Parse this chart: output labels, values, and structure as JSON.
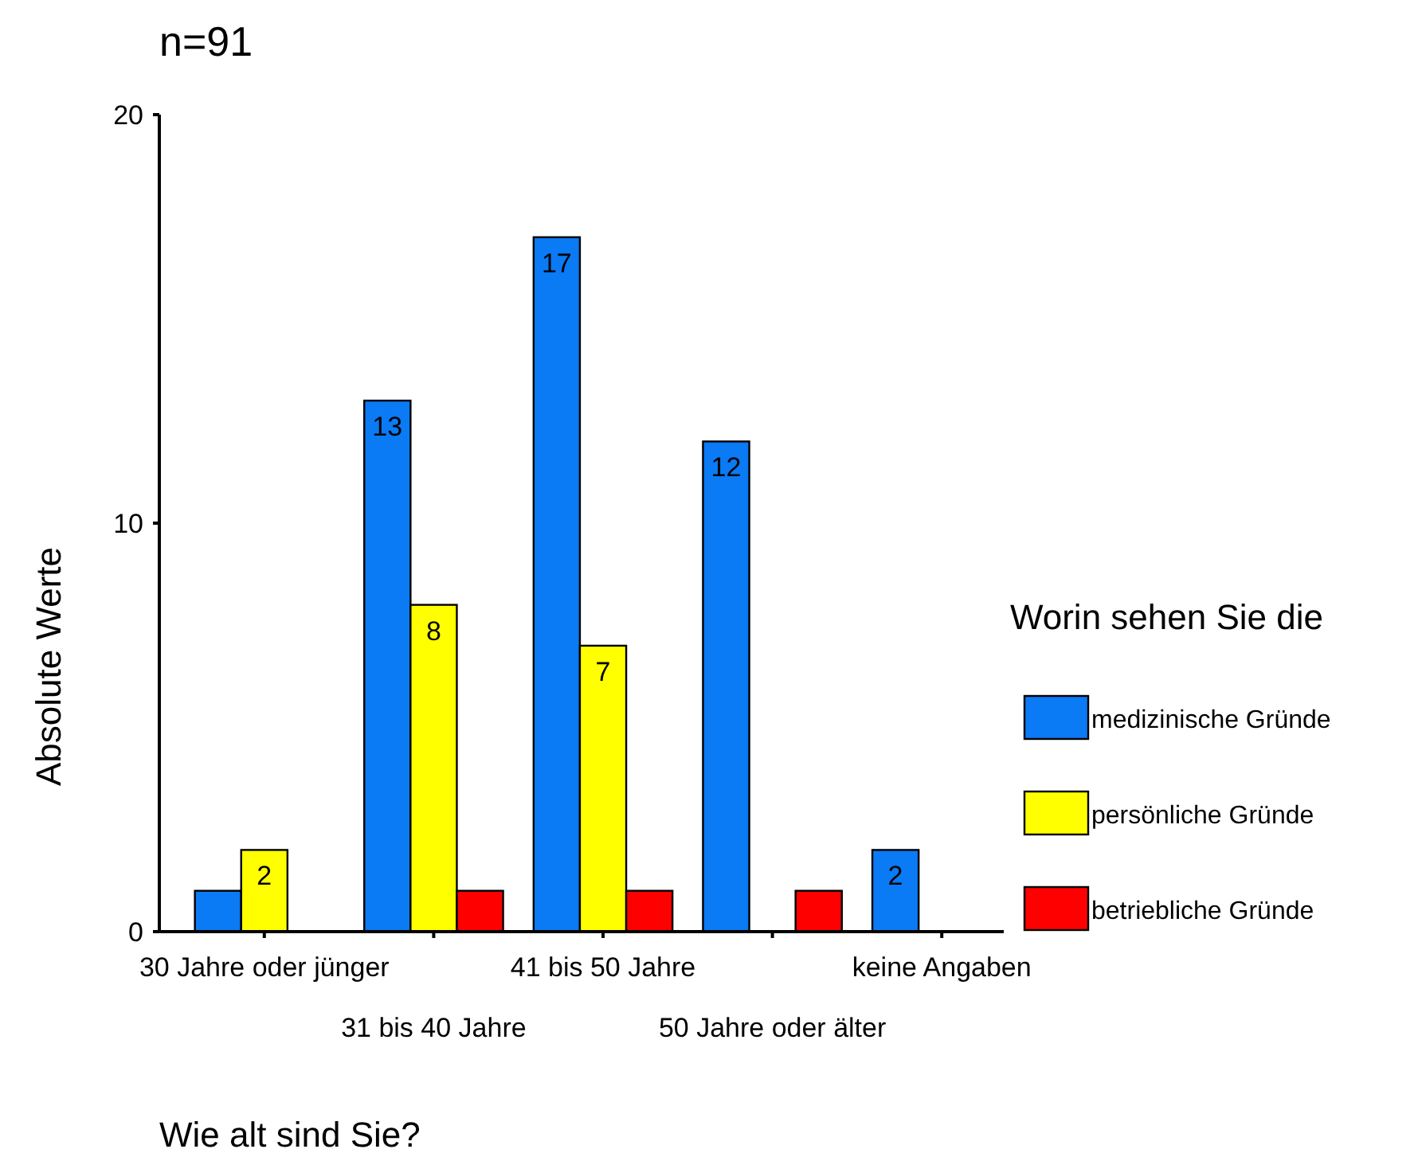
{
  "chart_data": {
    "type": "bar",
    "title": "n=91",
    "xlabel": "Wie alt sind Sie?",
    "ylabel": "Absolute Werte",
    "legend_title": "Worin sehen Sie die",
    "categories": [
      "30 Jahre oder jünger",
      "31 bis 40 Jahre",
      "41 bis 50 Jahre",
      "50 Jahre oder älter",
      "keine Angaben"
    ],
    "series": [
      {
        "name": "medizinische Gründe",
        "color": "#0a7af5",
        "values": [
          1,
          13,
          17,
          12,
          2
        ],
        "value_labels": [
          null,
          "13",
          "17",
          "12",
          "2"
        ]
      },
      {
        "name": "persönliche Gründe",
        "color": "#ffff00",
        "values": [
          2,
          8,
          7,
          0,
          0
        ],
        "value_labels": [
          "2",
          "8",
          "7",
          null,
          null
        ]
      },
      {
        "name": "betriebliche Gründe",
        "color": "#ff0000",
        "values": [
          0,
          1,
          1,
          1,
          0
        ],
        "value_labels": [
          null,
          null,
          null,
          null,
          null
        ]
      }
    ],
    "ylim": [
      0,
      20
    ],
    "yticks": [
      0,
      10,
      20
    ],
    "legend": "right",
    "grid": false
  }
}
